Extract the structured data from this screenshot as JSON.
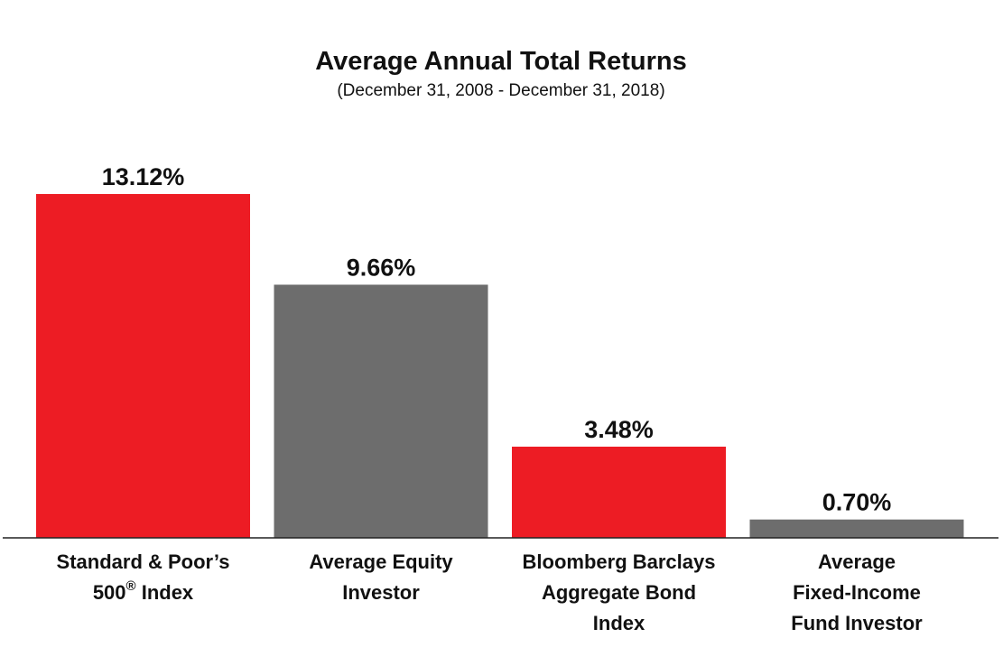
{
  "chart_data": {
    "type": "bar",
    "title": "Average Annual Total Returns",
    "subtitle": "(December 31, 2008 - December 31, 2018)",
    "categories": [
      {
        "lines": [
          "Standard & Poor’s",
          "500",
          " Index"
        ],
        "superscript": "®"
      },
      {
        "lines": [
          "Average Equity",
          "Investor"
        ]
      },
      {
        "lines": [
          "Bloomberg Barclays",
          "Aggregate Bond",
          "Index"
        ]
      },
      {
        "lines": [
          "Average",
          "Fixed-Income",
          "Fund Investor"
        ]
      }
    ],
    "values": [
      13.12,
      9.66,
      3.48,
      0.7
    ],
    "value_labels": [
      "13.12%",
      "9.66%",
      "3.48%",
      "0.70%"
    ],
    "colors": [
      "#ed1c24",
      "#6d6d6d",
      "#ed1c24",
      "#6d6d6d"
    ],
    "ylim": [
      0,
      13.12
    ],
    "xlabel": "",
    "ylabel": "",
    "grid": false,
    "legend": "none"
  }
}
